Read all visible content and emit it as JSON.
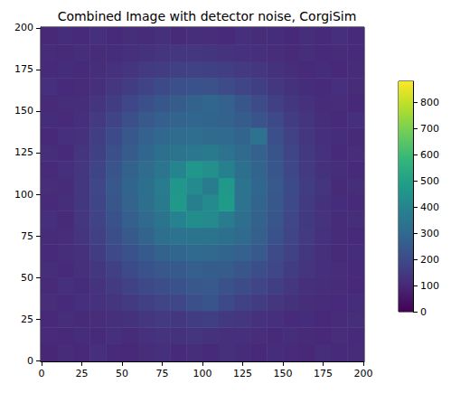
{
  "chart_data": {
    "type": "heatmap",
    "title": "Combined Image with detector noise, CorgiSim",
    "x_edges": [
      -0.5,
      10,
      20,
      30,
      40,
      50,
      60,
      70,
      80,
      90,
      100,
      110,
      120,
      130,
      140,
      150,
      160,
      170,
      180,
      190,
      200.5
    ],
    "y_edges": [
      -0.5,
      10,
      20,
      30,
      40,
      50,
      60,
      70,
      80,
      90,
      100,
      110,
      120,
      130,
      140,
      150,
      160,
      170,
      180,
      190,
      200.5
    ],
    "values": [
      [
        95,
        110,
        102,
        118,
        105,
        99,
        112,
        120,
        108,
        115,
        104,
        121,
        109,
        98,
        113,
        107,
        100,
        116,
        103,
        111
      ],
      [
        108,
        97,
        114,
        105,
        119,
        110,
        124,
        130,
        126,
        135,
        128,
        122,
        118,
        112,
        103,
        117,
        106,
        99,
        112,
        104
      ],
      [
        101,
        115,
        106,
        112,
        121,
        128,
        140,
        150,
        145,
        160,
        165,
        148,
        138,
        125,
        119,
        108,
        114,
        102,
        109,
        117
      ],
      [
        112,
        104,
        118,
        125,
        135,
        150,
        170,
        185,
        190,
        215,
        230,
        195,
        175,
        160,
        140,
        128,
        115,
        110,
        104,
        113
      ],
      [
        106,
        119,
        113,
        130,
        155,
        175,
        195,
        210,
        225,
        240,
        245,
        220,
        205,
        185,
        165,
        140,
        122,
        116,
        109,
        102
      ],
      [
        115,
        108,
        122,
        145,
        170,
        200,
        225,
        240,
        250,
        265,
        260,
        255,
        235,
        210,
        190,
        160,
        135,
        118,
        112,
        107
      ],
      [
        103,
        117,
        128,
        160,
        195,
        225,
        250,
        275,
        290,
        300,
        295,
        285,
        270,
        245,
        205,
        175,
        145,
        121,
        106,
        114
      ],
      [
        110,
        112,
        135,
        170,
        210,
        245,
        280,
        320,
        330,
        340,
        335,
        325,
        300,
        265,
        225,
        185,
        150,
        125,
        111,
        105
      ],
      [
        118,
        106,
        140,
        180,
        225,
        265,
        300,
        340,
        390,
        430,
        420,
        370,
        320,
        275,
        235,
        190,
        152,
        130,
        109,
        116
      ],
      [
        104,
        115,
        145,
        185,
        235,
        280,
        320,
        360,
        470,
        380,
        420,
        480,
        330,
        285,
        240,
        195,
        155,
        128,
        113,
        108
      ],
      [
        112,
        109,
        142,
        190,
        240,
        285,
        325,
        365,
        460,
        420,
        370,
        470,
        335,
        290,
        245,
        200,
        158,
        132,
        106,
        117
      ],
      [
        107,
        120,
        138,
        182,
        230,
        275,
        310,
        345,
        400,
        460,
        440,
        385,
        325,
        280,
        238,
        192,
        150,
        126,
        115,
        103
      ],
      [
        115,
        104,
        132,
        172,
        215,
        255,
        290,
        325,
        340,
        350,
        360,
        330,
        305,
        270,
        230,
        185,
        148,
        124,
        108,
        112
      ],
      [
        102,
        118,
        126,
        162,
        200,
        240,
        270,
        295,
        310,
        315,
        305,
        300,
        285,
        330,
        215,
        175,
        140,
        120,
        113,
        106
      ],
      [
        113,
        107,
        120,
        150,
        180,
        215,
        245,
        265,
        280,
        290,
        285,
        275,
        255,
        230,
        195,
        160,
        132,
        117,
        104,
        119
      ],
      [
        106,
        116,
        115,
        135,
        160,
        190,
        215,
        235,
        255,
        275,
        290,
        270,
        235,
        205,
        170,
        145,
        125,
        110,
        112,
        101
      ],
      [
        119,
        103,
        110,
        122,
        140,
        160,
        180,
        200,
        215,
        225,
        220,
        205,
        185,
        165,
        145,
        128,
        114,
        107,
        118,
        109
      ],
      [
        104,
        114,
        107,
        115,
        125,
        135,
        150,
        160,
        170,
        175,
        172,
        162,
        150,
        138,
        126,
        115,
        108,
        113,
        102,
        111
      ],
      [
        111,
        106,
        117,
        109,
        114,
        120,
        127,
        132,
        138,
        140,
        137,
        130,
        124,
        118,
        112,
        106,
        116,
        104,
        110,
        107
      ],
      [
        100,
        113,
        105,
        119,
        108,
        115,
        110,
        121,
        106,
        117,
        112,
        103,
        118,
        109,
        114,
        101,
        116,
        107,
        120,
        105
      ]
    ],
    "xlim": [
      -0.5,
      200.5
    ],
    "ylim": [
      -0.5,
      200.5
    ],
    "xticks": [
      0,
      25,
      50,
      75,
      100,
      125,
      150,
      175,
      200
    ],
    "yticks": [
      0,
      25,
      50,
      75,
      100,
      125,
      150,
      175,
      200
    ],
    "colorbar": {
      "range": [
        0,
        880
      ],
      "ticks": [
        0,
        100,
        200,
        300,
        400,
        500,
        600,
        700,
        800
      ]
    },
    "grid": false
  }
}
